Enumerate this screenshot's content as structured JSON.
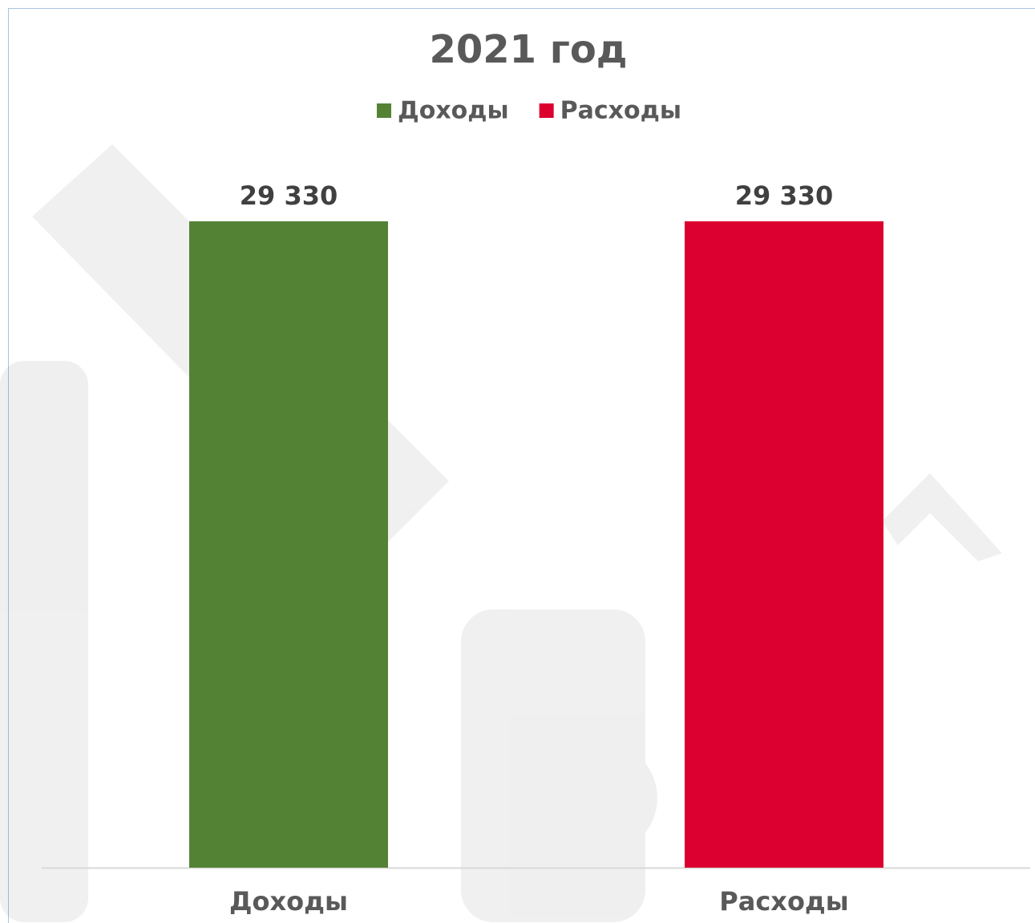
{
  "chart_data": {
    "type": "bar",
    "title": "2021 год",
    "categories": [
      "Доходы",
      "Расходы"
    ],
    "series": [
      {
        "name": "Доходы",
        "color": "#548235",
        "values": [
          29330,
          null
        ],
        "value_labels": [
          "29 330",
          null
        ]
      },
      {
        "name": "Расходы",
        "color": "#dc0030",
        "values": [
          null,
          29330
        ],
        "value_labels": [
          null,
          "29 330"
        ]
      }
    ],
    "legend": "top"
  }
}
